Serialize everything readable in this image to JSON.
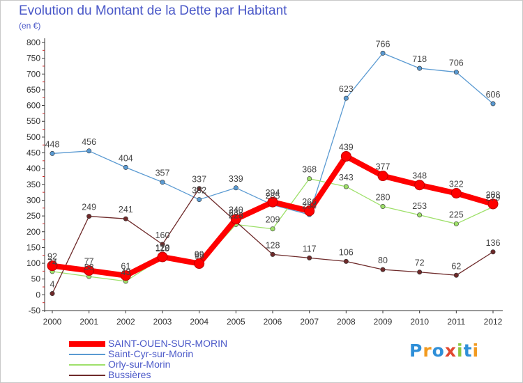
{
  "chart_data": {
    "type": "line",
    "title": "Evolution du Montant de la Dette par Habitant",
    "subtitle": "(en €)",
    "x": [
      "2000",
      "2001",
      "2002",
      "2003",
      "2004",
      "2005",
      "2006",
      "2007",
      "2008",
      "2009",
      "2010",
      "2011",
      "2012"
    ],
    "ylim": [
      -50,
      800
    ],
    "yticks": [
      -50,
      0,
      50,
      100,
      150,
      200,
      250,
      300,
      350,
      400,
      450,
      500,
      550,
      600,
      650,
      700,
      750,
      800
    ],
    "grid": false,
    "legend_position": "bottom-left",
    "series": [
      {
        "name": "SAINT-OUEN-SUR-MORIN",
        "color": "#ff0000",
        "values": [
          92,
          77,
          61,
          120,
          99,
          240,
          294,
          266,
          439,
          377,
          348,
          322,
          288
        ],
        "emphasis": true
      },
      {
        "name": "Saint-Cyr-sur-Morin",
        "color": "#5a9ad2",
        "values": [
          448,
          456,
          404,
          357,
          302,
          339,
          285,
          254,
          623,
          766,
          718,
          706,
          606
        ]
      },
      {
        "name": "Orly-sur-Morin",
        "color": "#9ee06a",
        "values": [
          74,
          58,
          43,
          118,
          95,
          223,
          209,
          368,
          343,
          280,
          253,
          225,
          279
        ]
      },
      {
        "name": "Bussières",
        "color": "#6e2a2a",
        "values": [
          4,
          249,
          241,
          160,
          337,
          232,
          128,
          117,
          106,
          80,
          72,
          62,
          136
        ]
      }
    ],
    "data_labels": [
      {
        "x": "2000",
        "text": "92"
      },
      {
        "x": "2000",
        "text": "74"
      },
      {
        "x": "2000",
        "text": "448"
      },
      {
        "x": "2000",
        "text": "4"
      },
      {
        "x": "2001",
        "text": "77"
      },
      {
        "x": "2001",
        "text": "58"
      },
      {
        "x": "2001",
        "text": "456"
      },
      {
        "x": "2001",
        "text": "249"
      },
      {
        "x": "2002",
        "text": "61"
      },
      {
        "x": "2002",
        "text": "43"
      },
      {
        "x": "2002",
        "text": "404"
      },
      {
        "x": "2002",
        "text": "241"
      },
      {
        "x": "2003",
        "text": "160"
      },
      {
        "x": "2003",
        "text": "120"
      },
      {
        "x": "2003",
        "text": "118"
      },
      {
        "x": "2003",
        "text": "357"
      },
      {
        "x": "2004",
        "text": "99"
      },
      {
        "x": "2004",
        "text": "95"
      },
      {
        "x": "2004",
        "text": "337"
      },
      {
        "x": "2004",
        "text": "302"
      },
      {
        "x": "2005",
        "text": "240"
      },
      {
        "x": "2005",
        "text": "232"
      },
      {
        "x": "2005",
        "text": "223"
      },
      {
        "x": "2005",
        "text": "339"
      },
      {
        "x": "2006",
        "text": "294"
      },
      {
        "x": "2006",
        "text": "285"
      },
      {
        "x": "2006",
        "text": "209"
      },
      {
        "x": "2006",
        "text": "128"
      },
      {
        "x": "2007",
        "text": "266"
      },
      {
        "x": "2007",
        "text": "254"
      },
      {
        "x": "2007",
        "text": "368"
      },
      {
        "x": "2007",
        "text": "117"
      },
      {
        "x": "2008",
        "text": "439"
      },
      {
        "x": "2008",
        "text": "623"
      },
      {
        "x": "2008",
        "text": "343"
      },
      {
        "x": "2008",
        "text": "106"
      },
      {
        "x": "2009",
        "text": "766"
      },
      {
        "x": "2009",
        "text": "377"
      },
      {
        "x": "2009",
        "text": "280"
      },
      {
        "x": "2009",
        "text": "80"
      },
      {
        "x": "2010",
        "text": "718"
      },
      {
        "x": "2010",
        "text": "348"
      },
      {
        "x": "2010",
        "text": "253"
      },
      {
        "x": "2010",
        "text": "72"
      },
      {
        "x": "2011",
        "text": "706"
      },
      {
        "x": "2011",
        "text": "322"
      },
      {
        "x": "2011",
        "text": "225"
      },
      {
        "x": "2011",
        "text": "62"
      },
      {
        "x": "2012",
        "text": "606"
      },
      {
        "x": "2012",
        "text": "288"
      },
      {
        "x": "2012",
        "text": "279"
      },
      {
        "x": "2012",
        "text": "136"
      }
    ]
  },
  "logo": {
    "text": "Proxiti",
    "letter_colors": [
      "#2f8fd8",
      "#f29a1f",
      "#2f8fd8",
      "#e2482f",
      "#8cc63f",
      "#2f8fd8",
      "#f29a1f"
    ]
  }
}
